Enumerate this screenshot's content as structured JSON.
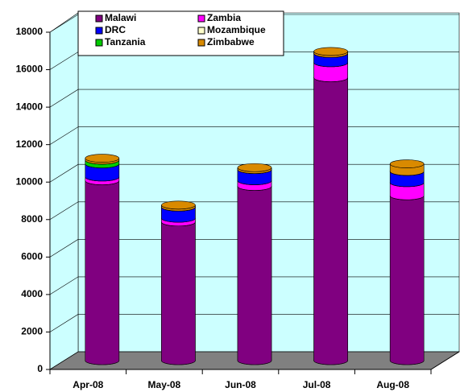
{
  "chart_data": {
    "type": "bar",
    "stacked": true,
    "categories": [
      "Apr-08",
      "May-08",
      "Jun-08",
      "Jul-08",
      "Aug-08"
    ],
    "series": [
      {
        "name": "Malawi",
        "color": "#800080",
        "values": [
          9600,
          7400,
          9300,
          15100,
          8800
        ]
      },
      {
        "name": "Zambia",
        "color": "#FF00FF",
        "values": [
          200,
          200,
          300,
          800,
          700
        ]
      },
      {
        "name": "DRC",
        "color": "#0000FF",
        "values": [
          700,
          600,
          600,
          500,
          600
        ]
      },
      {
        "name": "Mozambique",
        "color": "#FFFFCC",
        "values": [
          0,
          0,
          0,
          0,
          0
        ]
      },
      {
        "name": "Tanzania",
        "color": "#00CC00",
        "values": [
          200,
          0,
          0,
          0,
          0
        ]
      },
      {
        "name": "Zimbabwe",
        "color": "#D98A00",
        "values": [
          100,
          100,
          100,
          100,
          400
        ]
      }
    ],
    "ylim": [
      0,
      18000
    ],
    "yticks": [
      0,
      2000,
      4000,
      6000,
      8000,
      10000,
      12000,
      14000,
      16000,
      18000
    ],
    "grid": true
  }
}
